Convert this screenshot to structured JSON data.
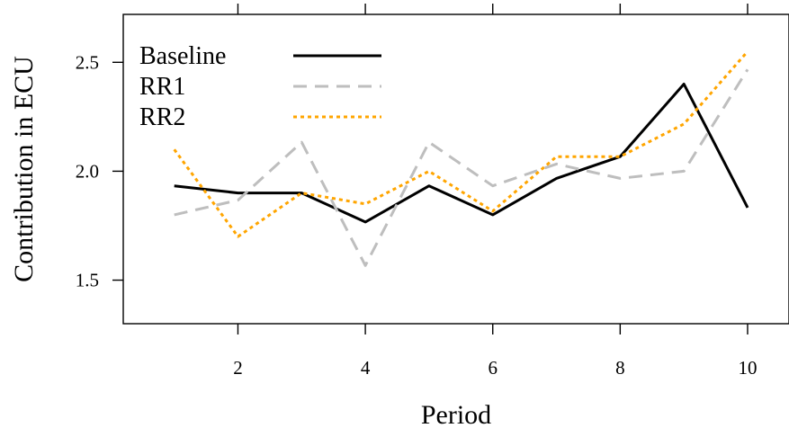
{
  "chart_data": {
    "type": "line",
    "xlabel": "Period",
    "ylabel": "Contribution in ECU",
    "x": [
      1,
      2,
      3,
      4,
      5,
      6,
      7,
      8,
      9,
      10
    ],
    "xlim": [
      0.2,
      10.65
    ],
    "ylim": [
      1.3,
      2.72
    ],
    "xticks": [
      2,
      4,
      6,
      8,
      10
    ],
    "xtick_labels": [
      "2",
      "4",
      "6",
      "8",
      "10"
    ],
    "xticks_top": [
      2,
      4,
      6,
      8,
      10
    ],
    "yticks": [
      1.5,
      2.0,
      2.5
    ],
    "ytick_labels": [
      "1.5",
      "2.0",
      "2.5"
    ],
    "grid": false,
    "legend_position": "top-left",
    "series": [
      {
        "name": "Baseline",
        "color": "#000000",
        "style": "solid",
        "values": [
          1.933,
          1.9,
          1.9,
          1.767,
          1.933,
          1.8,
          1.967,
          2.067,
          2.4,
          1.833
        ]
      },
      {
        "name": "RR1",
        "color": "#bebebe",
        "style": "dashed",
        "values": [
          1.8,
          1.867,
          2.133,
          1.567,
          2.133,
          1.933,
          2.033,
          1.967,
          2.0,
          2.467
        ]
      },
      {
        "name": "RR2",
        "color": "#ffa500",
        "style": "dotted",
        "values": [
          2.1,
          1.7,
          1.9,
          1.85,
          2.0,
          1.817,
          2.067,
          2.067,
          2.217,
          2.55
        ]
      }
    ]
  }
}
